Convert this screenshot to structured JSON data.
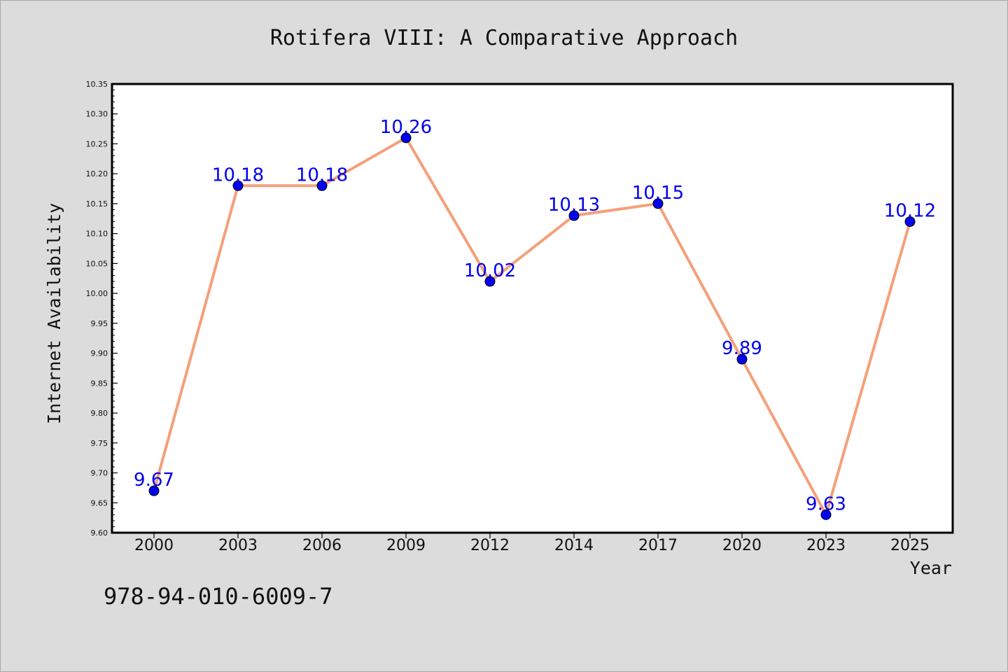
{
  "chart_data": {
    "type": "line",
    "title": "Rotifera VIII: A Comparative Approach",
    "xlabel": "Year",
    "ylabel": "Internet Availability",
    "categories": [
      "2000",
      "2003",
      "2006",
      "2009",
      "2012",
      "2014",
      "2017",
      "2020",
      "2023",
      "2025"
    ],
    "series": [
      {
        "values": [
          9.67,
          10.18,
          10.18,
          10.26,
          10.02,
          10.13,
          10.15,
          9.89,
          9.63,
          10.12
        ],
        "labels": [
          "9.67",
          "10.18",
          "10.18",
          "10.26",
          "10.02",
          "10.13",
          "10.15",
          "9.89",
          "9.63",
          "10.12"
        ]
      }
    ],
    "ylim": [
      9.6,
      10.35
    ],
    "y_ticks": [
      "9.60",
      "9.65",
      "9.70",
      "9.75",
      "9.80",
      "9.85",
      "9.90",
      "9.95",
      "10.00",
      "10.05",
      "10.10",
      "10.15",
      "10.20",
      "10.25",
      "10.30",
      "10.35"
    ],
    "grid": false,
    "legend": "none",
    "annotation": "978-94-010-6009-7",
    "colors": {
      "background": "#dcdcdc",
      "plot_background": "#ffffff",
      "line": "#f4a07a",
      "marker": "#0000ee",
      "data_label": "#0000ee",
      "text": "#111111"
    }
  }
}
